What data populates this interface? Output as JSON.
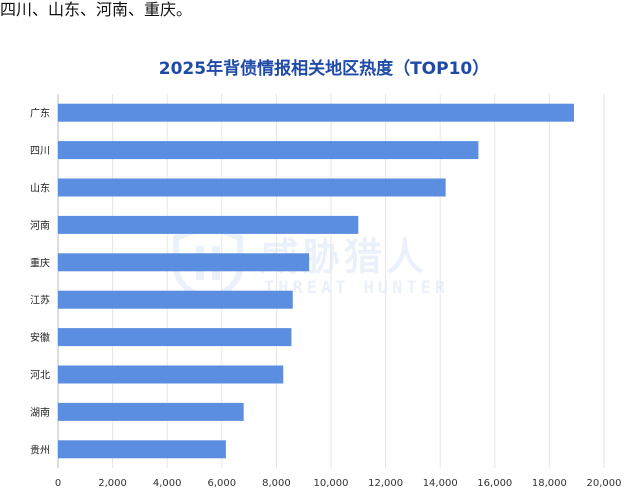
{
  "intro_text": "四川、山东、河南、重庆。",
  "watermark": {
    "cn": "威胁猎人",
    "en": "THREAT HUNTER"
  },
  "chart_data": {
    "type": "bar",
    "orientation": "horizontal",
    "title": "2025年背债情报相关地区热度（TOP10）",
    "categories": [
      "广东",
      "四川",
      "山东",
      "河南",
      "重庆",
      "江苏",
      "安徽",
      "河北",
      "湖南",
      "贵州"
    ],
    "values": [
      18900,
      15400,
      14200,
      11000,
      9200,
      8600,
      8550,
      8250,
      6800,
      6150
    ],
    "xlim": [
      0,
      20000
    ],
    "xticks": [
      "0",
      "2,000",
      "4,000",
      "6,000",
      "8,000",
      "10,000",
      "12,000",
      "14,000",
      "16,000",
      "18,000",
      "20,000"
    ],
    "xlabel": "",
    "ylabel": "",
    "grid": "vertical",
    "bar_color": "#5b8ee0"
  }
}
